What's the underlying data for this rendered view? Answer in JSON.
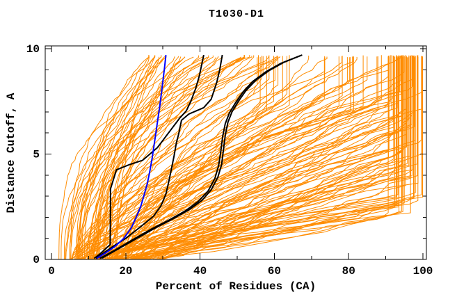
{
  "chart_data": {
    "type": "line",
    "title": "T1030-D1",
    "xlabel": "Percent of Residues (CA)",
    "ylabel": "Distance Cutoff, A",
    "xlim": [
      0,
      100
    ],
    "ylim": [
      0,
      10
    ],
    "x_major_ticks": [
      0,
      20,
      40,
      60,
      80,
      100
    ],
    "x_minor_ticks": [
      10,
      30,
      50,
      70,
      90
    ],
    "y_major_ticks": [
      0,
      5,
      10
    ],
    "y_minor_ticks": [
      1,
      2,
      3,
      4,
      6,
      7,
      8,
      9
    ],
    "grid": false,
    "legend": "none",
    "frame_color": "#000000",
    "series": [
      {
        "name": "highlighted-black-1",
        "color": "#000000",
        "width": 2,
        "points": [
          [
            11.5,
            0.05
          ],
          [
            13,
            0.25
          ],
          [
            15.8,
            0.7
          ],
          [
            15.9,
            3.35
          ],
          [
            17.5,
            4.25
          ],
          [
            21,
            4.5
          ],
          [
            24.5,
            4.7
          ],
          [
            26.5,
            5.0
          ],
          [
            28.5,
            5.3
          ],
          [
            30,
            5.65
          ],
          [
            31.5,
            6.0
          ],
          [
            33,
            6.35
          ],
          [
            34.5,
            6.7
          ],
          [
            36.3,
            7.05
          ],
          [
            37.5,
            7.5
          ],
          [
            38.8,
            8.1
          ],
          [
            39.8,
            8.7
          ],
          [
            40.4,
            9.2
          ],
          [
            41,
            9.7
          ]
        ]
      },
      {
        "name": "highlighted-black-2",
        "color": "#000000",
        "width": 2,
        "points": [
          [
            12,
            0.05
          ],
          [
            16,
            0.55
          ],
          [
            20,
            1.0
          ],
          [
            24,
            1.55
          ],
          [
            27.5,
            2.05
          ],
          [
            29.5,
            2.55
          ],
          [
            30.8,
            3.1
          ],
          [
            31.6,
            3.7
          ],
          [
            32.3,
            4.3
          ],
          [
            33,
            4.9
          ],
          [
            33.6,
            5.5
          ],
          [
            34.3,
            6.0
          ],
          [
            35,
            6.6
          ],
          [
            37,
            6.9
          ],
          [
            41,
            7.2
          ],
          [
            43,
            7.6
          ],
          [
            44.5,
            8.4
          ],
          [
            45.3,
            9.0
          ],
          [
            46,
            9.7
          ]
        ]
      },
      {
        "name": "highlighted-black-3",
        "color": "#000000",
        "width": 2,
        "points": [
          [
            13.5,
            0.05
          ],
          [
            18,
            0.5
          ],
          [
            23,
            1.0
          ],
          [
            28,
            1.5
          ],
          [
            33,
            1.95
          ],
          [
            37,
            2.35
          ],
          [
            40.5,
            2.8
          ],
          [
            43,
            3.3
          ],
          [
            44.8,
            3.9
          ],
          [
            45.8,
            4.5
          ],
          [
            46.3,
            5.2
          ],
          [
            46.8,
            5.9
          ],
          [
            47.5,
            6.5
          ],
          [
            48.6,
            7.0
          ],
          [
            50.3,
            7.5
          ],
          [
            52.3,
            8.0
          ],
          [
            55,
            8.5
          ],
          [
            58.5,
            8.95
          ],
          [
            62.5,
            9.35
          ],
          [
            67.5,
            9.7
          ]
        ]
      },
      {
        "name": "highlighted-black-4",
        "color": "#000000",
        "width": 2,
        "points": [
          [
            13,
            0.05
          ],
          [
            17.2,
            0.45
          ],
          [
            22,
            0.95
          ],
          [
            27,
            1.45
          ],
          [
            32,
            1.9
          ],
          [
            36,
            2.3
          ],
          [
            39.5,
            2.75
          ],
          [
            42.2,
            3.25
          ],
          [
            44,
            3.85
          ],
          [
            45,
            4.45
          ],
          [
            45.6,
            5.15
          ],
          [
            46.1,
            5.85
          ],
          [
            46.8,
            6.45
          ],
          [
            47.9,
            6.95
          ],
          [
            49.6,
            7.45
          ],
          [
            51.6,
            7.95
          ],
          [
            54.2,
            8.45
          ],
          [
            57.7,
            8.9
          ],
          [
            61.7,
            9.3
          ],
          [
            67,
            9.67
          ]
        ]
      },
      {
        "name": "highlighted-blue",
        "color": "#0000ff",
        "width": 2,
        "points": [
          [
            12.2,
            0.05
          ],
          [
            14.5,
            0.3
          ],
          [
            17,
            0.6
          ],
          [
            19.5,
            1.0
          ],
          [
            21.5,
            1.5
          ],
          [
            22.8,
            2.0
          ],
          [
            24,
            2.5
          ],
          [
            25,
            3.1
          ],
          [
            25.8,
            3.6
          ],
          [
            26.5,
            4.2
          ],
          [
            27.1,
            4.8
          ],
          [
            27.6,
            5.4
          ],
          [
            28.1,
            6.0
          ],
          [
            28.6,
            6.6
          ],
          [
            29.1,
            7.2
          ],
          [
            29.6,
            7.9
          ],
          [
            30.1,
            8.6
          ],
          [
            30.5,
            9.2
          ],
          [
            30.8,
            9.7
          ]
        ]
      }
    ],
    "background_curves": {
      "description": "ensemble of prediction curves",
      "color": "#ff8c00",
      "width": 1,
      "count": 155,
      "seed": 7,
      "cutoff_end_range": [
        9.58,
        9.7
      ],
      "families": [
        {
          "weight": 0.45,
          "s": [
            6,
            30
          ],
          "e": [
            90,
            100
          ],
          "reach": [
            2.2,
            7.2
          ],
          "p": [
            0.7,
            1.4
          ]
        },
        {
          "weight": 0.31,
          "s": [
            5,
            24
          ],
          "e": [
            55,
            100
          ],
          "reach": [
            7,
            9.6
          ],
          "p": [
            0.9,
            1.9
          ]
        },
        {
          "weight": 0.24,
          "s": [
            2,
            18
          ],
          "e": [
            26,
            62
          ],
          "reach": [
            9.6,
            9.6
          ],
          "p": [
            1.6,
            3.0
          ]
        }
      ]
    }
  }
}
